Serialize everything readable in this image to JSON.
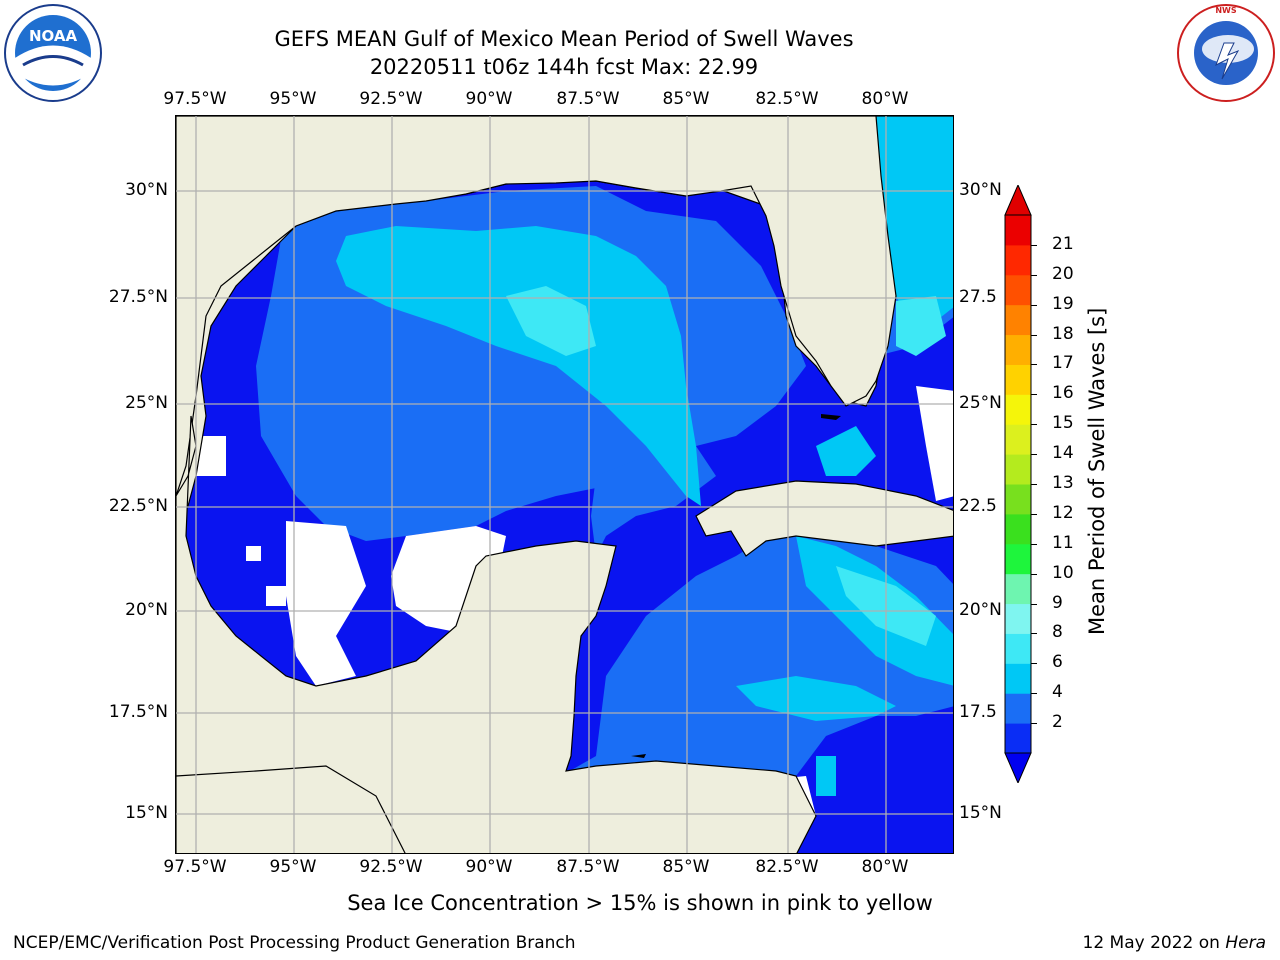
{
  "title": {
    "line1": "GEFS MEAN Gulf of Mexico Mean Period of Swell Waves",
    "line2": "20220511 t06z 144h fcst   Max: 22.99"
  },
  "map": {
    "lon_ticks": [
      "97.5°W",
      "95°W",
      "92.5°W",
      "90°W",
      "87.5°W",
      "85°W",
      "82.5°W",
      "80°W"
    ],
    "lat_ticks_left": [
      "30°N",
      "27.5°N",
      "25°N",
      "22.5°N",
      "20°N",
      "17.5°N",
      "15°N"
    ],
    "lat_ticks_right": [
      "30°N",
      "27.5",
      "25°N",
      "22.5",
      "20°N",
      "17.5",
      "15°N"
    ],
    "land_color": "#eeeedd",
    "grid_color": "#b0b0b0"
  },
  "colorbar": {
    "label": "Mean Period of Swell Waves [s]",
    "ticks": [
      "2",
      "4",
      "6",
      "8",
      "9",
      "10",
      "11",
      "12",
      "13",
      "14",
      "15",
      "16",
      "17",
      "18",
      "19",
      "20",
      "21"
    ],
    "colors": [
      "#0a2df5",
      "#1a6ef5",
      "#00c8f5",
      "#3ee8f5",
      "#7ff5f0",
      "#6ef5b0",
      "#1ef53c",
      "#3ae01e",
      "#78e01e",
      "#b4eb1e",
      "#dcf01e",
      "#f5f50a",
      "#ffd200",
      "#ffaf00",
      "#ff8200",
      "#ff5000",
      "#ff2800",
      "#eb0000"
    ],
    "under_color": "#0000f0",
    "over_color": "#e00000"
  },
  "legend_note": "Sea Ice Concentration > 15% is shown in pink to yellow",
  "footer": {
    "left": "NCEP/EMC/Verification Post Processing Product Generation Branch",
    "date": "12 May 2022 on ",
    "host": "Hera"
  },
  "logos": {
    "noaa": "NOAA",
    "nws": "NATIONAL WEATHER SERVICE"
  }
}
